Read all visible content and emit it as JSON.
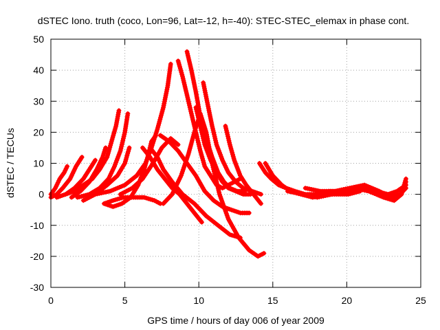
{
  "chart_data": {
    "type": "scatter",
    "title": "dSTEC Iono. truth (coco, Lon=96, Lat=-12, h=-40): STEC-STEC_elemax in phase cont.",
    "xlabel": "GPS time / hours of day 006 of year 2009",
    "ylabel": "dSTEC  / TECUs",
    "xlim": [
      0,
      25
    ],
    "ylim": [
      -30,
      50
    ],
    "xticks": [
      0,
      5,
      10,
      15,
      20,
      25
    ],
    "yticks": [
      -30,
      -20,
      -10,
      0,
      10,
      20,
      30,
      40,
      50
    ],
    "grid": true,
    "marker": "plus",
    "color": "#ff0000",
    "series": [
      {
        "x": [
          0.0,
          0.3,
          0.6,
          0.9,
          1.1
        ],
        "y": [
          0,
          2,
          5,
          7,
          9
        ]
      },
      {
        "x": [
          0.0,
          0.4,
          0.8,
          1.3,
          1.7,
          2.1
        ],
        "y": [
          -1,
          0,
          2,
          5,
          9,
          12
        ]
      },
      {
        "x": [
          0.4,
          1.0,
          1.6,
          2.2,
          2.6,
          3.0
        ],
        "y": [
          -1,
          0,
          2,
          5,
          8,
          11
        ]
      },
      {
        "x": [
          1.4,
          2.0,
          2.6,
          3.1,
          3.5,
          3.7
        ],
        "y": [
          -1,
          1,
          4,
          8,
          12,
          15
        ]
      },
      {
        "x": [
          1.0,
          1.6,
          2.2,
          2.8,
          3.3,
          3.8,
          4.1,
          4.4,
          4.6
        ],
        "y": [
          0,
          1,
          3,
          5,
          8,
          12,
          17,
          22,
          27
        ]
      },
      {
        "x": [
          1.8,
          2.6,
          3.3,
          3.9,
          4.3,
          4.7,
          5.0,
          5.2
        ],
        "y": [
          -1,
          0,
          2,
          5,
          9,
          14,
          20,
          26
        ]
      },
      {
        "x": [
          2.2,
          3.0,
          3.8,
          4.5,
          5.0,
          5.3
        ],
        "y": [
          -2,
          0,
          3,
          6,
          10,
          15
        ]
      },
      {
        "x": [
          3.6,
          4.2,
          4.9,
          5.6,
          6.3,
          7.0,
          7.4
        ],
        "y": [
          -3,
          -2,
          -1,
          -1,
          -1,
          -2,
          -3
        ]
      },
      {
        "x": [
          3.6,
          4.2,
          4.8,
          5.4,
          5.9,
          6.3,
          6.6,
          6.8,
          7.1
        ],
        "y": [
          -3,
          -4,
          -3,
          -1,
          3,
          8,
          13,
          17,
          19
        ]
      },
      {
        "x": [
          3.0,
          4.0,
          5.0,
          5.8,
          6.4,
          6.8,
          7.2,
          7.6,
          7.9,
          8.1
        ],
        "y": [
          0,
          1,
          3,
          6,
          10,
          15,
          21,
          28,
          35,
          42
        ]
      },
      {
        "x": [
          4.7,
          5.5,
          6.2,
          6.9,
          7.5,
          8.1,
          8.6
        ],
        "y": [
          0,
          2,
          5,
          10,
          15,
          18,
          16
        ]
      },
      {
        "x": [
          6.2,
          6.7,
          7.2,
          7.7,
          8.2,
          8.7,
          9.2,
          9.7,
          10.2
        ],
        "y": [
          15,
          12,
          8,
          5,
          2,
          0,
          -3,
          -6,
          -9
        ]
      },
      {
        "x": [
          6.7,
          7.2,
          7.6,
          8.2,
          8.9,
          9.7,
          10.5,
          11.3,
          12.1,
          12.8
        ],
        "y": [
          15,
          12,
          8,
          4,
          0,
          -3,
          -7,
          -10,
          -13,
          -14
        ]
      },
      {
        "x": [
          7.4,
          8.0,
          8.6,
          9.2,
          9.8,
          10.4,
          11.0,
          11.6,
          12.2,
          12.8,
          13.4
        ],
        "y": [
          19,
          17,
          14,
          10,
          6,
          1,
          -2,
          -4,
          -5,
          -6,
          -6
        ]
      },
      {
        "x": [
          7.6,
          8.2,
          8.8,
          9.3,
          9.7,
          10.1,
          10.5,
          10.9,
          11.4,
          12.0,
          12.7,
          13.4,
          14.0,
          14.4
        ],
        "y": [
          -3,
          0,
          6,
          13,
          20,
          26,
          20,
          10,
          0,
          -8,
          -14,
          -18,
          -20,
          -19
        ]
      },
      {
        "x": [
          8.6,
          8.9,
          9.2,
          9.5,
          9.8,
          10.1,
          10.4,
          10.8,
          11.2,
          11.6,
          12.0,
          12.4,
          12.8
        ],
        "y": [
          43,
          38,
          32,
          26,
          20,
          14,
          9,
          6,
          3,
          2,
          3,
          4,
          5
        ]
      },
      {
        "x": [
          9.2,
          9.5,
          9.8,
          10.1,
          10.5,
          10.9,
          11.3,
          11.7,
          12.1,
          12.6,
          13.1
        ],
        "y": [
          46,
          40,
          33,
          25,
          18,
          12,
          7,
          4,
          2,
          1,
          1
        ]
      },
      {
        "x": [
          9.8,
          10.1,
          10.4,
          10.8,
          11.2,
          11.6,
          12.0,
          12.5,
          13.0,
          13.5
        ],
        "y": [
          28,
          22,
          16,
          11,
          7,
          4,
          2,
          1,
          0,
          0
        ]
      },
      {
        "x": [
          10.3,
          10.6,
          10.9,
          11.2,
          11.6,
          12.0,
          12.5,
          13.0,
          13.6,
          14.2
        ],
        "y": [
          36,
          29,
          22,
          16,
          11,
          7,
          4,
          2,
          1,
          0
        ]
      },
      {
        "x": [
          11.8,
          12.1,
          12.4,
          12.8,
          13.2,
          13.7,
          14.2
        ],
        "y": [
          22,
          16,
          11,
          6,
          3,
          0,
          -3
        ]
      },
      {
        "x": [
          14.1,
          14.5,
          14.9,
          15.4,
          15.9,
          16.5,
          17.2,
          18.0,
          18.8,
          19.6
        ],
        "y": [
          10,
          7,
          5,
          3,
          2,
          1,
          0,
          0,
          1,
          1
        ]
      },
      {
        "x": [
          14.5,
          15.0,
          15.6,
          16.2,
          16.9,
          17.7,
          18.5,
          19.3,
          20.1,
          20.9
        ],
        "y": [
          10,
          6,
          3,
          1,
          0,
          -1,
          0,
          0,
          0,
          1
        ]
      },
      {
        "x": [
          16.0,
          17.0,
          18.0,
          19.0,
          20.0,
          21.0,
          22.0,
          22.8,
          23.4,
          24.0
        ],
        "y": [
          1,
          0,
          -1,
          0,
          1,
          2,
          1,
          0,
          1,
          3
        ]
      },
      {
        "x": [
          17.2,
          18.2,
          19.2,
          20.2,
          21.2,
          22.2,
          23.0,
          23.6,
          24.0
        ],
        "y": [
          2,
          1,
          1,
          2,
          3,
          1,
          -1,
          0,
          2
        ]
      },
      {
        "x": [
          18.4,
          19.5,
          20.5,
          21.5,
          22.5,
          23.2,
          23.7,
          24.0
        ],
        "y": [
          0,
          1,
          2,
          1,
          -1,
          -2,
          0,
          5
        ]
      },
      {
        "x": [
          20.5,
          21.5,
          22.5,
          23.2,
          23.7,
          24.0
        ],
        "y": [
          2,
          1,
          -1,
          -2,
          0,
          4
        ]
      }
    ]
  }
}
